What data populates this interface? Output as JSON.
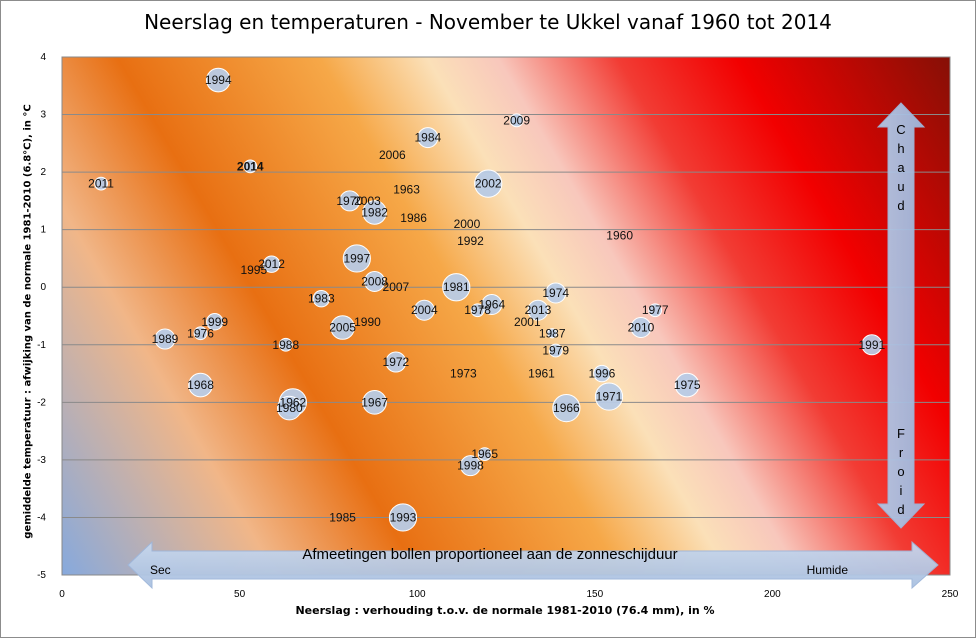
{
  "chart_data": {
    "type": "scatter",
    "title": "Neerslag en temperaturen - November te Ukkel vanaf 1960 tot 2014",
    "xlabel": "Neerslag : verhouding  t.o.v.  de normale 1981-2010 (76.4 mm), in %",
    "ylabel": "gemiddelde temperatuur : afwijking van de normale 1981-2010 (6.8°C), in °C",
    "xlim": [
      0,
      250
    ],
    "ylim": [
      -5,
      4
    ],
    "xticks": [
      "0",
      "50",
      "100",
      "150",
      "200",
      "250"
    ],
    "yticks": [
      "-5",
      "-4",
      "-3",
      "-2",
      "-1",
      "0",
      "1",
      "2",
      "3",
      "4"
    ],
    "grid": true,
    "bubble_size_meaning": "Afmeetingen bollen proportioneel aan de zonneschijduur",
    "axis_annotations": {
      "dry": "Sec",
      "wet": "Humide",
      "hot": "Chaud",
      "cold": "Froid"
    },
    "highlight_year": "2014",
    "highlight_color": "#c00000",
    "bubble_color": "#b8cbe6",
    "points": [
      {
        "year": "1960",
        "x": 157,
        "y": 0.9,
        "size": 0
      },
      {
        "year": "1961",
        "x": 135,
        "y": -1.5,
        "size": 0
      },
      {
        "year": "1962",
        "x": 65,
        "y": -2.0,
        "size": 3.5
      },
      {
        "year": "1963",
        "x": 97,
        "y": 1.7,
        "size": 0
      },
      {
        "year": "1964",
        "x": 121,
        "y": -0.3,
        "size": 2.5
      },
      {
        "year": "1965",
        "x": 119,
        "y": -2.9,
        "size": 1.5
      },
      {
        "year": "1966",
        "x": 142,
        "y": -2.1,
        "size": 3.5
      },
      {
        "year": "1967",
        "x": 88,
        "y": -2.0,
        "size": 3.0
      },
      {
        "year": "1968",
        "x": 39,
        "y": -1.7,
        "size": 3.0
      },
      {
        "year": "1970",
        "x": 81,
        "y": 1.5,
        "size": 2.5
      },
      {
        "year": "1971",
        "x": 154,
        "y": -1.9,
        "size": 3.5
      },
      {
        "year": "1972",
        "x": 94,
        "y": -1.3,
        "size": 2.5
      },
      {
        "year": "1973",
        "x": 113,
        "y": -1.5,
        "size": 0
      },
      {
        "year": "1974",
        "x": 139,
        "y": -0.1,
        "size": 2.5
      },
      {
        "year": "1975",
        "x": 176,
        "y": -1.7,
        "size": 3.0
      },
      {
        "year": "1976",
        "x": 39,
        "y": -0.8,
        "size": 1.5
      },
      {
        "year": "1977",
        "x": 167,
        "y": -0.4,
        "size": 1.5
      },
      {
        "year": "1978",
        "x": 117,
        "y": -0.4,
        "size": 1.5
      },
      {
        "year": "1979",
        "x": 139,
        "y": -1.1,
        "size": 1.5
      },
      {
        "year": "1980",
        "x": 64,
        "y": -2.1,
        "size": 3.0
      },
      {
        "year": "1981",
        "x": 111,
        "y": 0.0,
        "size": 3.5
      },
      {
        "year": "1982",
        "x": 88,
        "y": 1.3,
        "size": 3.0
      },
      {
        "year": "1983",
        "x": 73,
        "y": -0.2,
        "size": 2.0
      },
      {
        "year": "1984",
        "x": 103,
        "y": 2.6,
        "size": 2.5
      },
      {
        "year": "1985",
        "x": 79,
        "y": -4.0,
        "size": 0
      },
      {
        "year": "1986",
        "x": 99,
        "y": 1.2,
        "size": 0
      },
      {
        "year": "1987",
        "x": 138,
        "y": -0.8,
        "size": 1.0
      },
      {
        "year": "1988",
        "x": 63,
        "y": -1.0,
        "size": 1.5
      },
      {
        "year": "1989",
        "x": 29,
        "y": -0.9,
        "size": 2.5
      },
      {
        "year": "1990",
        "x": 86,
        "y": -0.6,
        "size": 0
      },
      {
        "year": "1991",
        "x": 228,
        "y": -1.0,
        "size": 2.5
      },
      {
        "year": "1992",
        "x": 115,
        "y": 0.8,
        "size": 0
      },
      {
        "year": "1993",
        "x": 96,
        "y": -4.0,
        "size": 3.5
      },
      {
        "year": "1994",
        "x": 44,
        "y": 3.6,
        "size": 3.0
      },
      {
        "year": "1995",
        "x": 54,
        "y": 0.3,
        "size": 0
      },
      {
        "year": "1996",
        "x": 152,
        "y": -1.5,
        "size": 2.0
      },
      {
        "year": "1997",
        "x": 83,
        "y": 0.5,
        "size": 3.5
      },
      {
        "year": "1998",
        "x": 115,
        "y": -3.1,
        "size": 2.5
      },
      {
        "year": "1999",
        "x": 43,
        "y": -0.6,
        "size": 2.0
      },
      {
        "year": "2000",
        "x": 114,
        "y": 1.1,
        "size": 0
      },
      {
        "year": "2001",
        "x": 131,
        "y": -0.6,
        "size": 0
      },
      {
        "year": "2002",
        "x": 120,
        "y": 1.8,
        "size": 3.5
      },
      {
        "year": "2003",
        "x": 86,
        "y": 1.5,
        "size": 0
      },
      {
        "year": "2004",
        "x": 102,
        "y": -0.4,
        "size": 2.5
      },
      {
        "year": "2005",
        "x": 79,
        "y": -0.7,
        "size": 3.0
      },
      {
        "year": "2006",
        "x": 93,
        "y": 2.3,
        "size": 0
      },
      {
        "year": "2007",
        "x": 94,
        "y": 0.0,
        "size": 0
      },
      {
        "year": "2008",
        "x": 88,
        "y": 0.1,
        "size": 2.5
      },
      {
        "year": "2009",
        "x": 128,
        "y": 2.9,
        "size": 1.5
      },
      {
        "year": "2010",
        "x": 163,
        "y": -0.7,
        "size": 2.5
      },
      {
        "year": "2011",
        "x": 11,
        "y": 1.8,
        "size": 1.5
      },
      {
        "year": "2012",
        "x": 59,
        "y": 0.4,
        "size": 2.0
      },
      {
        "year": "2013",
        "x": 134,
        "y": -0.4,
        "size": 2.5
      },
      {
        "year": "2014",
        "x": 53,
        "y": 2.1,
        "size": 1.5
      }
    ]
  }
}
